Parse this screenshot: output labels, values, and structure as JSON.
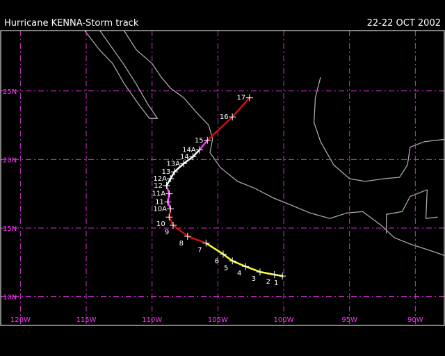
{
  "header": {
    "title": "Hurricane KENNA-Storm track",
    "dates": "22-22 OCT 2002"
  },
  "colors": {
    "background": "#000000",
    "grid": "#cc33cc",
    "coast": "#a8a8a8",
    "frame": "#ffffff"
  },
  "axes": {
    "lat_labels": [
      "25N",
      "20N",
      "15N",
      "10N"
    ],
    "lat_values": [
      25,
      20,
      15,
      10
    ],
    "lon_labels": [
      "120W",
      "115W",
      "110W",
      "105W",
      "100W",
      "95W",
      "90W"
    ],
    "lon_values": [
      -120,
      -115,
      -110,
      -105,
      -100,
      -95,
      -90
    ],
    "lon_range": [
      -121.5,
      -87.8
    ],
    "lat_range": [
      7.9,
      29.4
    ]
  },
  "track": {
    "points": [
      {
        "lon": -100.1,
        "lat": 11.5,
        "label": "1",
        "color": "#33ff33"
      },
      {
        "lon": -100.7,
        "lat": 11.6,
        "label": "2",
        "color": "#ffff33"
      },
      {
        "lon": -101.8,
        "lat": 11.8,
        "label": "3",
        "color": "#ffff33"
      },
      {
        "lon": -102.9,
        "lat": 12.2,
        "label": "4",
        "color": "#ffff33"
      },
      {
        "lon": -103.9,
        "lat": 12.6,
        "label": "5",
        "color": "#ffff33"
      },
      {
        "lon": -104.6,
        "lat": 13.1,
        "label": "6",
        "color": "#ffff33"
      },
      {
        "lon": -105.9,
        "lat": 13.9,
        "label": "7",
        "color": "#ffff33"
      },
      {
        "lon": -107.3,
        "lat": 14.4,
        "label": "8",
        "color": "#cc1111"
      },
      {
        "lon": -108.4,
        "lat": 15.2,
        "label": "9",
        "color": "#cc1111"
      },
      {
        "lon": -108.7,
        "lat": 15.8,
        "label": "10",
        "color": "#cc1111"
      },
      {
        "lon": -108.6,
        "lat": 16.4,
        "label": "10A",
        "color": "#cc1111"
      },
      {
        "lon": -108.8,
        "lat": 16.9,
        "label": "11",
        "color": "#ff33ff"
      },
      {
        "lon": -108.7,
        "lat": 17.5,
        "label": "11A",
        "color": "#ff33ff"
      },
      {
        "lon": -108.9,
        "lat": 18.1,
        "label": "12",
        "color": "#ff33ff"
      },
      {
        "lon": -108.6,
        "lat": 18.6,
        "label": "12A",
        "color": "#ffffff"
      },
      {
        "lon": -108.3,
        "lat": 19.1,
        "label": "13",
        "color": "#ffffff"
      },
      {
        "lon": -107.6,
        "lat": 19.7,
        "label": "13A",
        "color": "#ffffff"
      },
      {
        "lon": -106.9,
        "lat": 20.2,
        "label": "14",
        "color": "#ffffff"
      },
      {
        "lon": -106.4,
        "lat": 20.7,
        "label": "14A",
        "color": "#ffffff"
      },
      {
        "lon": -105.8,
        "lat": 21.4,
        "label": "15",
        "color": "#ff33ff"
      },
      {
        "lon": -103.9,
        "lat": 23.1,
        "label": "16",
        "color": "#cc1111"
      },
      {
        "lon": -102.6,
        "lat": 24.5,
        "label": "17",
        "color": "#cc1111"
      }
    ]
  },
  "coastlines": [
    [
      [
        -117.0,
        32.5
      ],
      [
        -116.3,
        31.0
      ],
      [
        -115.6,
        30.0
      ],
      [
        -114.8,
        29.0
      ],
      [
        -114.0,
        28.0
      ],
      [
        -113.0,
        27.0
      ],
      [
        -112.1,
        25.5
      ],
      [
        -111.0,
        24.0
      ],
      [
        -110.2,
        23.0
      ],
      [
        -109.6,
        23.0
      ],
      [
        -110.3,
        24.0
      ],
      [
        -111.2,
        25.5
      ],
      [
        -112.2,
        27.0
      ],
      [
        -113.3,
        28.5
      ],
      [
        -114.4,
        30.0
      ],
      [
        -114.8,
        31.5
      ]
    ],
    [
      [
        -114.8,
        31.5
      ],
      [
        -113.2,
        31.0
      ],
      [
        -112.2,
        29.5
      ],
      [
        -111.2,
        28.0
      ],
      [
        -110.0,
        27.0
      ],
      [
        -109.3,
        26.0
      ],
      [
        -108.6,
        25.2
      ],
      [
        -107.6,
        24.5
      ],
      [
        -106.6,
        23.4
      ],
      [
        -105.7,
        22.5
      ],
      [
        -105.4,
        21.5
      ],
      [
        -105.6,
        20.5
      ],
      [
        -104.8,
        19.4
      ],
      [
        -103.5,
        18.4
      ],
      [
        -102.2,
        17.9
      ],
      [
        -100.8,
        17.2
      ],
      [
        -99.5,
        16.7
      ],
      [
        -98.0,
        16.1
      ],
      [
        -96.5,
        15.7
      ],
      [
        -95.2,
        16.1
      ],
      [
        -94.0,
        16.2
      ],
      [
        -92.6,
        15.2
      ],
      [
        -91.6,
        14.3
      ],
      [
        -90.3,
        13.8
      ],
      [
        -89.0,
        13.4
      ],
      [
        -87.8,
        13.0
      ]
    ],
    [
      [
        -97.2,
        26.0
      ],
      [
        -97.6,
        24.5
      ],
      [
        -97.7,
        22.7
      ],
      [
        -97.2,
        21.3
      ],
      [
        -96.2,
        19.6
      ],
      [
        -95.0,
        18.6
      ],
      [
        -93.8,
        18.4
      ],
      [
        -92.4,
        18.6
      ],
      [
        -91.2,
        18.7
      ],
      [
        -90.6,
        19.6
      ],
      [
        -90.4,
        20.9
      ],
      [
        -89.3,
        21.3
      ],
      [
        -87.5,
        21.5
      ]
    ],
    [
      [
        -92.2,
        14.6
      ],
      [
        -92.2,
        16.0
      ],
      [
        -91.0,
        16.2
      ],
      [
        -90.4,
        17.3
      ],
      [
        -89.1,
        17.8
      ]
    ],
    [
      [
        -89.1,
        17.8
      ],
      [
        -89.2,
        15.7
      ],
      [
        -88.3,
        15.8
      ]
    ],
    [
      [
        -94.6,
        29.4
      ],
      [
        -93.0,
        29.4
      ]
    ]
  ]
}
